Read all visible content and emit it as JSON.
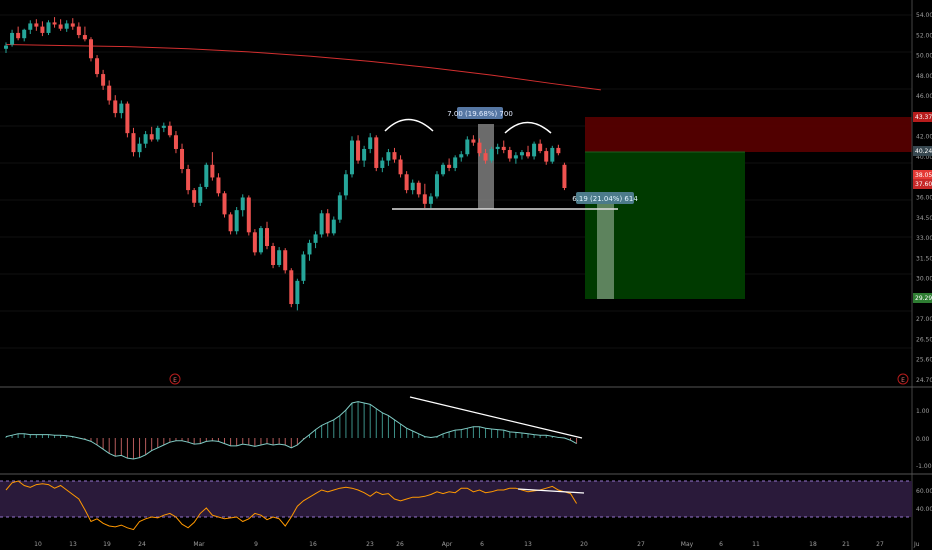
{
  "chart_data": {
    "type": "candlestick",
    "x_ticks": [
      "10",
      "13",
      "19",
      "24",
      "Mar",
      "9",
      "16",
      "23",
      "26",
      "Apr",
      "6",
      "13",
      "20",
      "27",
      "May",
      "6",
      "11",
      "18",
      "21",
      "27"
    ],
    "x_ticks_right": [
      "Ju"
    ],
    "price_axis": {
      "ticks": [
        "54.00",
        "52.00",
        "50.00",
        "48.00",
        "46.00",
        "44.00",
        "42.00",
        "40.00",
        "38.00",
        "36.00",
        "34.50",
        "33.00",
        "31.50",
        "30.00",
        "28.50",
        "27.00",
        "26.50",
        "25.60",
        "24.70"
      ],
      "labels": [
        {
          "text": "43.37",
          "color": "#b71c1c"
        },
        {
          "text": "40.24",
          "color": "#37474f"
        },
        {
          "text": "38.05",
          "color": "#e53935"
        },
        {
          "text": "37.60",
          "color": "#c62828"
        },
        {
          "text": "29.29",
          "color": "#2e7d32"
        }
      ]
    },
    "candles": [
      {
        "o": 50.8,
        "h": 51.4,
        "l": 50.4,
        "c": 51.1
      },
      {
        "o": 51.2,
        "h": 52.6,
        "l": 51.0,
        "c": 52.3
      },
      {
        "o": 52.3,
        "h": 52.9,
        "l": 51.6,
        "c": 51.8
      },
      {
        "o": 51.8,
        "h": 52.7,
        "l": 51.5,
        "c": 52.6
      },
      {
        "o": 52.6,
        "h": 53.5,
        "l": 52.2,
        "c": 53.2
      },
      {
        "o": 53.2,
        "h": 53.6,
        "l": 52.5,
        "c": 52.9
      },
      {
        "o": 52.9,
        "h": 53.4,
        "l": 52.0,
        "c": 52.3
      },
      {
        "o": 52.3,
        "h": 53.5,
        "l": 52.1,
        "c": 53.3
      },
      {
        "o": 53.3,
        "h": 53.8,
        "l": 52.8,
        "c": 53.1
      },
      {
        "o": 53.1,
        "h": 53.6,
        "l": 52.5,
        "c": 52.7
      },
      {
        "o": 52.7,
        "h": 53.5,
        "l": 52.4,
        "c": 53.2
      },
      {
        "o": 53.2,
        "h": 53.7,
        "l": 52.6,
        "c": 52.9
      },
      {
        "o": 52.9,
        "h": 53.3,
        "l": 51.8,
        "c": 52.1
      },
      {
        "o": 52.1,
        "h": 52.9,
        "l": 51.5,
        "c": 51.7
      },
      {
        "o": 51.7,
        "h": 51.9,
        "l": 49.6,
        "c": 49.9
      },
      {
        "o": 49.9,
        "h": 50.2,
        "l": 48.1,
        "c": 48.4
      },
      {
        "o": 48.4,
        "h": 48.8,
        "l": 46.9,
        "c": 47.3
      },
      {
        "o": 47.3,
        "h": 47.8,
        "l": 45.5,
        "c": 45.9
      },
      {
        "o": 45.9,
        "h": 46.4,
        "l": 44.3,
        "c": 44.7
      },
      {
        "o": 44.7,
        "h": 45.9,
        "l": 44.2,
        "c": 45.6
      },
      {
        "o": 45.6,
        "h": 45.8,
        "l": 42.4,
        "c": 42.8
      },
      {
        "o": 42.8,
        "h": 43.3,
        "l": 40.6,
        "c": 41.0
      },
      {
        "o": 41.0,
        "h": 42.4,
        "l": 40.5,
        "c": 41.8
      },
      {
        "o": 41.8,
        "h": 43.0,
        "l": 41.4,
        "c": 42.7
      },
      {
        "o": 42.7,
        "h": 43.4,
        "l": 42.0,
        "c": 42.2
      },
      {
        "o": 42.2,
        "h": 43.5,
        "l": 42.0,
        "c": 43.3
      },
      {
        "o": 43.3,
        "h": 43.8,
        "l": 42.9,
        "c": 43.5
      },
      {
        "o": 43.5,
        "h": 43.9,
        "l": 42.4,
        "c": 42.6
      },
      {
        "o": 42.6,
        "h": 43.0,
        "l": 40.9,
        "c": 41.3
      },
      {
        "o": 41.3,
        "h": 41.8,
        "l": 39.0,
        "c": 39.4
      },
      {
        "o": 39.4,
        "h": 39.8,
        "l": 37.0,
        "c": 37.4
      },
      {
        "o": 37.4,
        "h": 37.6,
        "l": 35.8,
        "c": 36.2
      },
      {
        "o": 36.2,
        "h": 38.0,
        "l": 35.9,
        "c": 37.7
      },
      {
        "o": 37.7,
        "h": 40.0,
        "l": 37.5,
        "c": 39.8
      },
      {
        "o": 39.8,
        "h": 41.0,
        "l": 38.3,
        "c": 38.6
      },
      {
        "o": 38.6,
        "h": 39.0,
        "l": 36.8,
        "c": 37.1
      },
      {
        "o": 37.1,
        "h": 37.3,
        "l": 34.8,
        "c": 35.1
      },
      {
        "o": 35.1,
        "h": 35.3,
        "l": 33.2,
        "c": 33.5
      },
      {
        "o": 33.5,
        "h": 35.8,
        "l": 33.2,
        "c": 35.5
      },
      {
        "o": 35.5,
        "h": 37.0,
        "l": 34.9,
        "c": 36.7
      },
      {
        "o": 36.7,
        "h": 36.9,
        "l": 33.1,
        "c": 33.4
      },
      {
        "o": 33.4,
        "h": 33.7,
        "l": 31.2,
        "c": 31.5
      },
      {
        "o": 31.5,
        "h": 34.0,
        "l": 31.3,
        "c": 33.8
      },
      {
        "o": 33.8,
        "h": 34.4,
        "l": 31.8,
        "c": 32.1
      },
      {
        "o": 32.1,
        "h": 32.4,
        "l": 30.0,
        "c": 30.3
      },
      {
        "o": 30.3,
        "h": 32.0,
        "l": 30.1,
        "c": 31.7
      },
      {
        "o": 31.7,
        "h": 31.9,
        "l": 29.5,
        "c": 29.8
      },
      {
        "o": 29.8,
        "h": 30.0,
        "l": 26.3,
        "c": 26.6
      },
      {
        "o": 26.6,
        "h": 29.0,
        "l": 26.0,
        "c": 28.8
      },
      {
        "o": 28.8,
        "h": 31.6,
        "l": 28.5,
        "c": 31.3
      },
      {
        "o": 31.3,
        "h": 32.7,
        "l": 30.7,
        "c": 32.4
      },
      {
        "o": 32.4,
        "h": 33.5,
        "l": 31.9,
        "c": 33.2
      },
      {
        "o": 33.2,
        "h": 35.5,
        "l": 32.9,
        "c": 35.2
      },
      {
        "o": 35.2,
        "h": 35.6,
        "l": 33.0,
        "c": 33.3
      },
      {
        "o": 33.3,
        "h": 34.9,
        "l": 33.1,
        "c": 34.6
      },
      {
        "o": 34.6,
        "h": 37.2,
        "l": 34.3,
        "c": 36.9
      },
      {
        "o": 36.9,
        "h": 39.3,
        "l": 36.5,
        "c": 38.9
      },
      {
        "o": 38.9,
        "h": 42.5,
        "l": 38.6,
        "c": 42.1
      },
      {
        "o": 42.1,
        "h": 42.6,
        "l": 39.9,
        "c": 40.2
      },
      {
        "o": 40.2,
        "h": 41.6,
        "l": 39.6,
        "c": 41.3
      },
      {
        "o": 41.3,
        "h": 42.8,
        "l": 40.9,
        "c": 42.4
      },
      {
        "o": 42.4,
        "h": 42.6,
        "l": 39.2,
        "c": 39.5
      },
      {
        "o": 39.5,
        "h": 40.5,
        "l": 39.1,
        "c": 40.2
      },
      {
        "o": 40.2,
        "h": 41.3,
        "l": 39.7,
        "c": 41.0
      },
      {
        "o": 41.0,
        "h": 41.4,
        "l": 40.0,
        "c": 40.3
      },
      {
        "o": 40.3,
        "h": 40.7,
        "l": 38.6,
        "c": 38.9
      },
      {
        "o": 38.9,
        "h": 39.2,
        "l": 37.1,
        "c": 37.4
      },
      {
        "o": 37.4,
        "h": 38.4,
        "l": 37.0,
        "c": 38.1
      },
      {
        "o": 38.1,
        "h": 38.3,
        "l": 36.7,
        "c": 37.0
      },
      {
        "o": 37.0,
        "h": 38.0,
        "l": 35.7,
        "c": 36.1
      },
      {
        "o": 36.1,
        "h": 37.1,
        "l": 35.7,
        "c": 36.8
      },
      {
        "o": 36.8,
        "h": 39.2,
        "l": 36.6,
        "c": 38.9
      },
      {
        "o": 38.9,
        "h": 40.0,
        "l": 38.7,
        "c": 39.8
      },
      {
        "o": 39.8,
        "h": 40.4,
        "l": 39.2,
        "c": 39.5
      },
      {
        "o": 39.5,
        "h": 40.7,
        "l": 39.2,
        "c": 40.5
      },
      {
        "o": 40.5,
        "h": 41.1,
        "l": 40.1,
        "c": 40.8
      },
      {
        "o": 40.8,
        "h": 42.5,
        "l": 40.6,
        "c": 42.2
      },
      {
        "o": 42.2,
        "h": 42.6,
        "l": 41.6,
        "c": 41.9
      },
      {
        "o": 41.9,
        "h": 42.3,
        "l": 40.6,
        "c": 40.9
      },
      {
        "o": 40.9,
        "h": 41.3,
        "l": 39.9,
        "c": 40.2
      },
      {
        "o": 40.2,
        "h": 41.5,
        "l": 40.0,
        "c": 41.3
      },
      {
        "o": 41.3,
        "h": 41.8,
        "l": 40.8,
        "c": 41.5
      },
      {
        "o": 41.5,
        "h": 42.1,
        "l": 40.9,
        "c": 41.2
      },
      {
        "o": 41.2,
        "h": 41.5,
        "l": 40.1,
        "c": 40.4
      },
      {
        "o": 40.4,
        "h": 41.0,
        "l": 39.9,
        "c": 40.7
      },
      {
        "o": 40.7,
        "h": 41.2,
        "l": 40.3,
        "c": 41.0
      },
      {
        "o": 41.0,
        "h": 41.6,
        "l": 40.4,
        "c": 40.6
      },
      {
        "o": 40.6,
        "h": 42.0,
        "l": 40.3,
        "c": 41.8
      },
      {
        "o": 41.8,
        "h": 42.2,
        "l": 40.9,
        "c": 41.1
      },
      {
        "o": 41.1,
        "h": 41.4,
        "l": 39.8,
        "c": 40.1
      },
      {
        "o": 40.1,
        "h": 41.6,
        "l": 39.9,
        "c": 41.4
      },
      {
        "o": 41.4,
        "h": 41.7,
        "l": 40.7,
        "c": 40.9
      },
      {
        "o": 39.8,
        "h": 40.0,
        "l": 37.4,
        "c": 37.6
      }
    ],
    "moving_average": [
      [
        0,
        51.2
      ],
      [
        10,
        51.1
      ],
      [
        20,
        51.0
      ],
      [
        30,
        50.8
      ],
      [
        40,
        50.5
      ],
      [
        50,
        50.1
      ],
      [
        60,
        49.6
      ],
      [
        70,
        49.0
      ],
      [
        80,
        48.3
      ],
      [
        90,
        47.5
      ],
      [
        98,
        46.9
      ]
    ],
    "annotations": {
      "measure_1": "7.00 (19.68%) 700",
      "measure_2": "6.19 (21.04%) 614",
      "earnings_marker": "E"
    },
    "macd": {
      "ticks": [
        "1.00",
        "0.00",
        "-1.00"
      ],
      "values": [
        0.05,
        0.1,
        0.15,
        0.15,
        0.12,
        0.12,
        0.12,
        0.12,
        0.1,
        0.1,
        0.08,
        0.05,
        0.0,
        -0.05,
        -0.12,
        -0.25,
        -0.4,
        -0.55,
        -0.65,
        -0.62,
        -0.72,
        -0.75,
        -0.7,
        -0.6,
        -0.45,
        -0.35,
        -0.25,
        -0.15,
        -0.1,
        -0.1,
        -0.15,
        -0.22,
        -0.2,
        -0.12,
        -0.1,
        -0.12,
        -0.2,
        -0.28,
        -0.28,
        -0.22,
        -0.25,
        -0.3,
        -0.25,
        -0.2,
        -0.25,
        -0.22,
        -0.25,
        -0.35,
        -0.25,
        -0.05,
        0.12,
        0.3,
        0.45,
        0.55,
        0.65,
        0.8,
        1.0,
        1.25,
        1.3,
        1.25,
        1.2,
        1.05,
        0.9,
        0.8,
        0.65,
        0.5,
        0.35,
        0.25,
        0.15,
        0.05,
        0.02,
        0.05,
        0.15,
        0.22,
        0.28,
        0.3,
        0.35,
        0.4,
        0.4,
        0.35,
        0.32,
        0.3,
        0.28,
        0.22,
        0.2,
        0.18,
        0.15,
        0.12,
        0.1,
        0.1,
        0.06,
        0.02,
        0.0,
        -0.08,
        -0.2
      ]
    },
    "rsi": {
      "ticks": [
        "60.00",
        "40.00"
      ],
      "values": [
        60,
        68,
        70,
        65,
        63,
        66,
        67,
        66,
        62,
        65,
        60,
        55,
        50,
        38,
        25,
        28,
        23,
        20,
        19,
        21,
        18,
        16,
        25,
        28,
        30,
        29,
        32,
        34,
        30,
        22,
        18,
        24,
        34,
        40,
        32,
        30,
        28,
        29,
        30,
        25,
        28,
        34,
        32,
        27,
        30,
        28,
        20,
        30,
        42,
        48,
        52,
        56,
        60,
        58,
        60,
        62,
        63,
        62,
        60,
        57,
        53,
        58,
        55,
        56,
        50,
        48,
        50,
        52,
        52,
        53,
        55,
        58,
        56,
        58,
        57,
        62,
        62,
        58,
        60,
        57,
        58,
        60,
        60,
        62,
        62,
        60,
        58,
        59,
        60,
        62,
        64,
        60,
        58,
        56,
        45
      ]
    }
  }
}
